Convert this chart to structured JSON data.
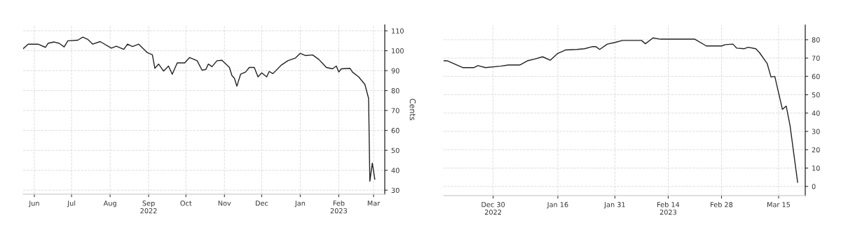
{
  "chart_data": [
    {
      "type": "line",
      "ylabel": "Cents",
      "xlim": [
        "2022-06-06",
        "2023-03-24"
      ],
      "ylim": [
        28,
        113
      ],
      "yticks": [
        30,
        40,
        50,
        60,
        70,
        80,
        90,
        100,
        110
      ],
      "xticks": [
        {
          "value": "2022-06-15",
          "label": "Jun"
        },
        {
          "value": "2022-07-15",
          "label": "Jul"
        },
        {
          "value": "2022-08-15",
          "label": "Aug"
        },
        {
          "value": "2022-09-15",
          "label": "Sep\n2022"
        },
        {
          "value": "2022-10-15",
          "label": "Oct"
        },
        {
          "value": "2022-11-15",
          "label": "Nov"
        },
        {
          "value": "2022-12-15",
          "label": "Dec"
        },
        {
          "value": "2023-01-15",
          "label": "Jan"
        },
        {
          "value": "2023-02-15",
          "label": "Feb\n2023"
        },
        {
          "value": "2023-03-15",
          "label": "Mar"
        }
      ],
      "grid": true,
      "line_style": "solid",
      "x": [
        "2022-06-06",
        "2022-06-10",
        "2022-06-18",
        "2022-06-24",
        "2022-06-26",
        "2022-07-01",
        "2022-07-05",
        "2022-07-09",
        "2022-07-12",
        "2022-07-20",
        "2022-07-24",
        "2022-07-28",
        "2022-08-01",
        "2022-08-07",
        "2022-08-16",
        "2022-08-20",
        "2022-08-26",
        "2022-08-29",
        "2022-09-02",
        "2022-09-07",
        "2022-09-14",
        "2022-09-18",
        "2022-09-20",
        "2022-09-23",
        "2022-09-27",
        "2022-10-01",
        "2022-10-04",
        "2022-10-08",
        "2022-10-14",
        "2022-10-18",
        "2022-10-24",
        "2022-10-28",
        "2022-10-31",
        "2022-11-02",
        "2022-11-05",
        "2022-11-09",
        "2022-11-13",
        "2022-11-19",
        "2022-11-21",
        "2022-11-23",
        "2022-11-25",
        "2022-11-28",
        "2022-12-02",
        "2022-12-05",
        "2022-12-09",
        "2022-12-12",
        "2022-12-15",
        "2022-12-19",
        "2022-12-21",
        "2022-12-24",
        "2022-12-31",
        "2023-01-05",
        "2023-01-11",
        "2023-01-15",
        "2023-01-19",
        "2023-01-25",
        "2023-01-30",
        "2023-02-02",
        "2023-02-05",
        "2023-02-10",
        "2023-02-13",
        "2023-02-15",
        "2023-02-17",
        "2023-02-24",
        "2023-02-26",
        "2023-03-03",
        "2023-03-08",
        "2023-03-11",
        "2023-03-12",
        "2023-03-14",
        "2023-03-16"
      ],
      "series": [
        {
          "color": "#222222",
          "values": [
            101,
            103.3,
            103.3,
            101.7,
            103.7,
            104.4,
            103.7,
            101.9,
            105,
            105.3,
            106.8,
            105.7,
            103.3,
            104.6,
            101.3,
            102.3,
            100.7,
            103.3,
            102.1,
            103.3,
            99,
            98,
            91.2,
            93.3,
            89.8,
            92.3,
            88.2,
            93.9,
            93.9,
            96.6,
            95,
            90.2,
            90.6,
            93.3,
            92,
            95,
            95.2,
            91.6,
            87.6,
            86.2,
            82.2,
            88.2,
            89.3,
            91.6,
            91.6,
            86.9,
            88.9,
            86.9,
            89.6,
            88.5,
            92.9,
            95,
            96.3,
            98.7,
            97.6,
            97.9,
            95.6,
            93.6,
            91.6,
            90.9,
            92.3,
            89.3,
            90.9,
            91.2,
            89.3,
            86.9,
            83.1,
            76.1,
            34.5,
            43.6,
            35.5
          ]
        }
      ]
    },
    {
      "type": "line",
      "xlim": [
        "2022-12-17",
        "2023-03-22"
      ],
      "ylim": [
        -5,
        88
      ],
      "yticks": [
        0,
        10,
        20,
        30,
        40,
        50,
        60,
        70,
        80
      ],
      "xticks": [
        {
          "value": "2022-12-30",
          "label": "Dec 30\n2022"
        },
        {
          "value": "2023-01-16",
          "label": "Jan 16"
        },
        {
          "value": "2023-01-31",
          "label": "Jan 31"
        },
        {
          "value": "2023-02-14",
          "label": "Feb 14\n2023"
        },
        {
          "value": "2023-02-28",
          "label": "Feb 28"
        },
        {
          "value": "2023-03-15",
          "label": "Mar 15"
        }
      ],
      "grid": true,
      "line_style": "solid",
      "x": [
        "2022-12-17",
        "2022-12-18",
        "2022-12-22",
        "2022-12-25",
        "2022-12-26",
        "2022-12-28",
        "2023-01-01",
        "2023-01-03",
        "2023-01-06",
        "2023-01-08",
        "2023-01-10",
        "2023-01-12",
        "2023-01-14",
        "2023-01-16",
        "2023-01-18",
        "2023-01-21",
        "2023-01-23",
        "2023-01-25",
        "2023-01-26",
        "2023-01-27",
        "2023-01-29",
        "2023-01-31",
        "2023-02-02",
        "2023-02-07",
        "2023-02-08",
        "2023-02-10",
        "2023-02-12",
        "2023-02-21",
        "2023-02-24",
        "2023-02-28",
        "2023-03-01",
        "2023-03-03",
        "2023-03-04",
        "2023-03-06",
        "2023-03-07",
        "2023-03-09",
        "2023-03-10",
        "2023-03-12",
        "2023-03-13",
        "2023-03-14",
        "2023-03-16",
        "2023-03-17",
        "2023-03-18",
        "2023-03-20"
      ],
      "series": [
        {
          "color": "#222222",
          "values": [
            68.5,
            68.5,
            64.8,
            64.8,
            65.9,
            64.8,
            65.6,
            66.2,
            66.2,
            68.5,
            69.5,
            70.7,
            68.8,
            72.6,
            74.4,
            74.7,
            75.1,
            76.2,
            76.2,
            74.7,
            77.6,
            78.5,
            79.6,
            79.6,
            77.8,
            81,
            80.3,
            80.3,
            76.6,
            76.6,
            77.3,
            77.6,
            75.4,
            75.1,
            75.9,
            75.1,
            72.9,
            67,
            59.7,
            60,
            42,
            43.8,
            33.2,
            2.2
          ]
        }
      ]
    }
  ]
}
